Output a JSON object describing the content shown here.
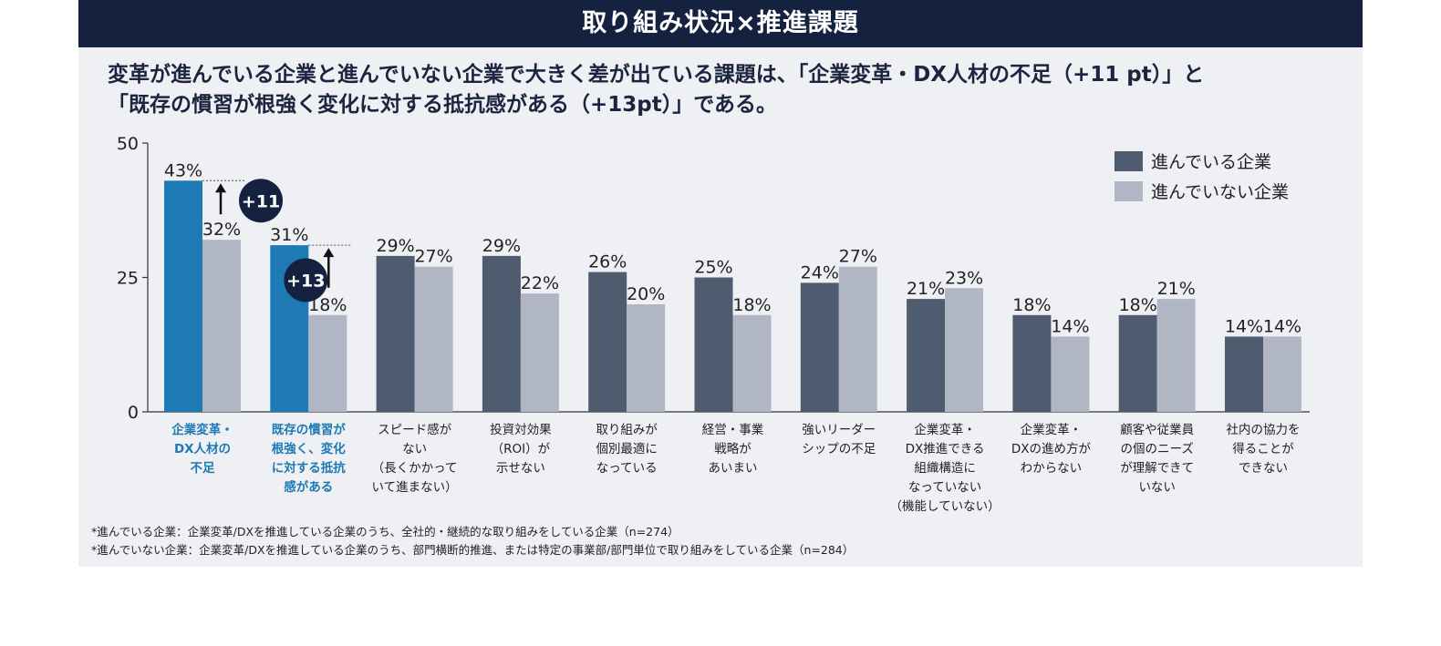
{
  "banner": "取り組み状況×推進課題",
  "headline": {
    "line1": "変革が進んでいる企業と進んでいない企業で大きく差が出ている課題は、「企業変革・DX人材の不足（+11 pt）」と",
    "line2": "「既存の慣習が根強く変化に対する抵抗感がある（+13pt）」である。"
  },
  "colors": {
    "advanced": "#4f5b6e",
    "not_advanced": "#b0b6c3",
    "highlight": "#1d7ab5",
    "highlight_label": "#1d7ab5",
    "badge": "#15223f",
    "banner": "#15223f"
  },
  "chart_data": {
    "type": "bar",
    "ylim": [
      0,
      50
    ],
    "yticks": [
      "0",
      "25",
      "50"
    ],
    "legend_position": "top-right",
    "categories": [
      [
        "企業変革・",
        "DX人材の",
        "不足"
      ],
      [
        "既存の慣習が",
        "根強く、変化",
        "に対する抵抗",
        "感がある"
      ],
      [
        "スピード感が",
        "ない",
        "（長くかかって",
        "いて進まない）"
      ],
      [
        "投資対効果",
        "（ROI）が",
        "示せない"
      ],
      [
        "取り組みが",
        "個別最適に",
        "なっている"
      ],
      [
        "経営・事業",
        "戦略が",
        "あいまい"
      ],
      [
        "強いリーダー",
        "シップの不足"
      ],
      [
        "企業変革・",
        "DX推進できる",
        "組織構造に",
        "なっていない",
        "（機能していない）"
      ],
      [
        "企業変革・",
        "DXの進め方が",
        "わからない"
      ],
      [
        "顧客や従業員",
        "の個のニーズ",
        "が理解できて",
        "いない"
      ],
      [
        "社内の協力を",
        "得ることが",
        "できない"
      ]
    ],
    "highlighted_categories": [
      0,
      1
    ],
    "series": [
      {
        "name": "進んでいる企業",
        "values": [
          43,
          31,
          29,
          29,
          26,
          25,
          24,
          21,
          18,
          18,
          14
        ],
        "labels": [
          "43%",
          "31%",
          "29%",
          "29%",
          "26%",
          "25%",
          "24%",
          "21%",
          "18%",
          "18%",
          "14%"
        ]
      },
      {
        "name": "進んでいない企業",
        "values": [
          32,
          18,
          27,
          22,
          20,
          18,
          27,
          23,
          14,
          21,
          14
        ],
        "labels": [
          "32%",
          "18%",
          "27%",
          "22%",
          "20%",
          "18%",
          "27%",
          "23%",
          "14%",
          "21%",
          "14%"
        ]
      }
    ],
    "annotations": [
      {
        "category": 0,
        "text": "+11",
        "gap_pt": 11
      },
      {
        "category": 1,
        "text": "+13",
        "gap_pt": 13
      }
    ]
  },
  "notes": [
    "*進んでいる企業：企業変革/DXを推進している企業のうち、全社的・継続的な取り組みをしている企業（n=274）",
    "*進んでいない企業：企業変革/DXを推進している企業のうち、部門横断的推進、または特定の事業部/部門単位で取り組みをしている企業（n=284）"
  ]
}
